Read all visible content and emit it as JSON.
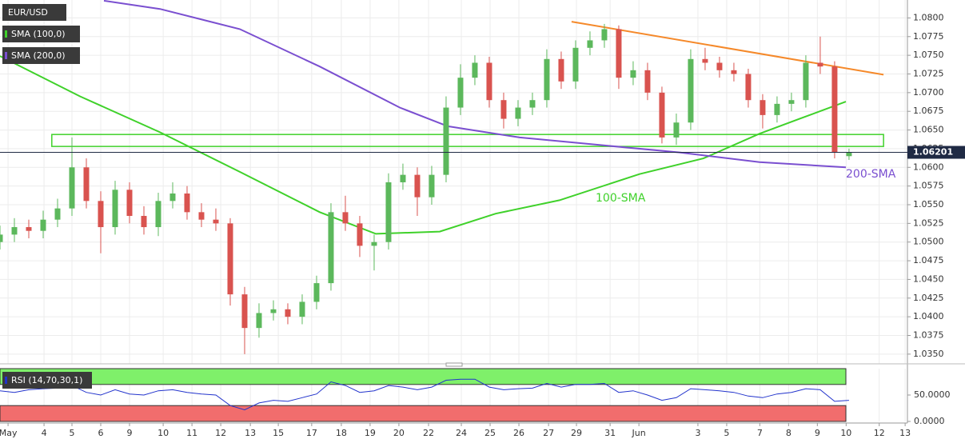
{
  "chart_data": {
    "type": "candlestick",
    "title": "EUR/USD",
    "xlim": [
      0,
      31.53
    ],
    "xticks": [
      {
        "value": 0.28,
        "label": "May"
      },
      {
        "value": 1.53,
        "label": "4"
      },
      {
        "value": 2.5,
        "label": "5"
      },
      {
        "value": 3.5,
        "label": "6"
      },
      {
        "value": 4.5,
        "label": "9"
      },
      {
        "value": 5.67,
        "label": "10"
      },
      {
        "value": 6.67,
        "label": "11"
      },
      {
        "value": 7.67,
        "label": "12"
      },
      {
        "value": 8.7,
        "label": "13"
      },
      {
        "value": 9.67,
        "label": "15"
      },
      {
        "value": 10.83,
        "label": "17"
      },
      {
        "value": 11.86,
        "label": "18"
      },
      {
        "value": 12.86,
        "label": "19"
      },
      {
        "value": 13.86,
        "label": "20"
      },
      {
        "value": 14.89,
        "label": "22"
      },
      {
        "value": 16.03,
        "label": "24"
      },
      {
        "value": 17.03,
        "label": "25"
      },
      {
        "value": 18.03,
        "label": "26"
      },
      {
        "value": 19.06,
        "label": "27"
      },
      {
        "value": 20.03,
        "label": "29"
      },
      {
        "value": 21.2,
        "label": "31"
      },
      {
        "value": 22.2,
        "label": "Jun"
      },
      {
        "value": 24.25,
        "label": "3"
      },
      {
        "value": 25.25,
        "label": "5"
      },
      {
        "value": 26.4,
        "label": "7"
      },
      {
        "value": 27.4,
        "label": "8"
      },
      {
        "value": 28.4,
        "label": "9"
      },
      {
        "value": 29.4,
        "label": "10"
      },
      {
        "value": 30.55,
        "label": "12"
      },
      {
        "value": 31.45,
        "label": "13"
      }
    ],
    "ylim": [
      1.0337,
      1.0824
    ],
    "yticks": [
      {
        "value": 1.035,
        "label": "1.0350"
      },
      {
        "value": 1.0375,
        "label": "1.0375"
      },
      {
        "value": 1.04,
        "label": "1.0400"
      },
      {
        "value": 1.0425,
        "label": "1.0425"
      },
      {
        "value": 1.045,
        "label": "1.0450"
      },
      {
        "value": 1.0475,
        "label": "1.0475"
      },
      {
        "value": 1.05,
        "label": "1.0500"
      },
      {
        "value": 1.0525,
        "label": "1.0525"
      },
      {
        "value": 1.055,
        "label": "1.0550"
      },
      {
        "value": 1.0575,
        "label": "1.0575"
      },
      {
        "value": 1.06,
        "label": "1.0600"
      },
      {
        "value": 1.0625,
        "label": "1.0625"
      },
      {
        "value": 1.065,
        "label": "1.0650"
      },
      {
        "value": 1.0675,
        "label": "1.0675"
      },
      {
        "value": 1.07,
        "label": "1.0700"
      },
      {
        "value": 1.0725,
        "label": "1.0725"
      },
      {
        "value": 1.075,
        "label": "1.0750"
      },
      {
        "value": 1.0775,
        "label": "1.0775"
      },
      {
        "value": 1.08,
        "label": "1.0800"
      }
    ],
    "grid": true,
    "up_color": "#5cb85c",
    "down_color": "#d9534f",
    "candles": {
      "x": [
        0,
        0.5,
        1,
        1.5,
        2,
        2.5,
        3,
        3.5,
        4,
        4.5,
        5,
        5.5,
        6,
        6.5,
        7,
        7.5,
        8,
        8.5,
        9,
        9.5,
        10,
        10.5,
        11,
        11.5,
        12,
        12.5,
        13,
        13.5,
        14,
        14.5,
        15,
        15.5,
        16,
        16.5,
        17,
        17.5,
        18,
        18.5,
        19,
        19.5,
        20,
        20.5,
        21,
        21.5,
        22,
        22.5,
        23,
        23.5,
        24,
        24.5,
        25,
        25.5,
        26,
        26.5,
        27,
        27.5,
        28,
        28.5,
        29,
        29.5
      ],
      "open": [
        1.05,
        1.051,
        1.052,
        1.0515,
        1.053,
        1.0545,
        1.06,
        1.0555,
        1.052,
        1.057,
        1.0535,
        1.052,
        1.0555,
        1.0565,
        1.054,
        1.053,
        1.0525,
        1.043,
        1.0385,
        1.0405,
        1.041,
        1.04,
        1.042,
        1.0445,
        1.054,
        1.0525,
        1.0495,
        1.05,
        1.058,
        1.059,
        1.056,
        1.059,
        1.068,
        1.072,
        1.074,
        1.069,
        1.0665,
        1.068,
        1.069,
        1.0745,
        1.0715,
        1.076,
        1.077,
        1.0785,
        1.072,
        1.073,
        1.07,
        1.064,
        1.066,
        1.0745,
        1.074,
        1.073,
        1.0725,
        1.069,
        1.067,
        1.0685,
        1.069,
        1.074,
        1.0735,
        1.0615
      ],
      "high": [
        1.0522,
        1.0532,
        1.053,
        1.0542,
        1.0558,
        1.064,
        1.0612,
        1.0568,
        1.0582,
        1.058,
        1.0548,
        1.0566,
        1.058,
        1.0575,
        1.0552,
        1.0545,
        1.0532,
        1.044,
        1.0418,
        1.0422,
        1.0418,
        1.043,
        1.0455,
        1.0552,
        1.0562,
        1.0535,
        1.051,
        1.0592,
        1.0605,
        1.06,
        1.0602,
        1.0695,
        1.0738,
        1.075,
        1.0748,
        1.07,
        1.069,
        1.07,
        1.0758,
        1.0755,
        1.077,
        1.0782,
        1.0792,
        1.079,
        1.0742,
        1.074,
        1.0708,
        1.0672,
        1.0758,
        1.076,
        1.0748,
        1.074,
        1.0732,
        1.0698,
        1.0695,
        1.07,
        1.075,
        1.0775,
        1.0742,
        1.0625
      ],
      "low": [
        1.049,
        1.05,
        1.0505,
        1.0505,
        1.052,
        1.0535,
        1.0545,
        1.0485,
        1.051,
        1.0525,
        1.051,
        1.0508,
        1.0545,
        1.053,
        1.052,
        1.0515,
        1.0415,
        1.035,
        1.0372,
        1.0395,
        1.039,
        1.039,
        1.041,
        1.0435,
        1.0515,
        1.048,
        1.0462,
        1.049,
        1.057,
        1.0535,
        1.055,
        1.058,
        1.067,
        1.071,
        1.068,
        1.0652,
        1.0655,
        1.067,
        1.068,
        1.0705,
        1.0705,
        1.075,
        1.076,
        1.0705,
        1.071,
        1.069,
        1.0632,
        1.063,
        1.065,
        1.073,
        1.072,
        1.0715,
        1.068,
        1.0652,
        1.066,
        1.0675,
        1.068,
        1.0725,
        1.0612,
        1.061
      ],
      "close": [
        1.051,
        1.052,
        1.0515,
        1.053,
        1.0545,
        1.06,
        1.0555,
        1.052,
        1.057,
        1.0535,
        1.052,
        1.0555,
        1.0565,
        1.054,
        1.053,
        1.0525,
        1.043,
        1.0385,
        1.0405,
        1.041,
        1.04,
        1.042,
        1.0445,
        1.054,
        1.0525,
        1.0495,
        1.05,
        1.058,
        1.059,
        1.056,
        1.059,
        1.068,
        1.072,
        1.074,
        1.069,
        1.0665,
        1.068,
        1.069,
        1.0745,
        1.0715,
        1.076,
        1.077,
        1.0785,
        1.072,
        1.073,
        1.07,
        1.064,
        1.066,
        1.0745,
        1.074,
        1.073,
        1.0725,
        1.069,
        1.067,
        1.0685,
        1.069,
        1.074,
        1.0735,
        1.062,
        1.062
      ]
    },
    "series": [
      {
        "name": "SMA (100,0)",
        "label": "100-SMA",
        "color": "#3fd12a",
        "x": [
          0,
          2.78,
          5.56,
          8.33,
          11.11,
          13.06,
          15.28,
          17.22,
          19.44,
          22.22,
          24.44,
          26.39,
          27.78,
          29.39
        ],
        "values": [
          1.0749,
          1.0695,
          1.0647,
          1.0594,
          1.054,
          1.0511,
          1.0514,
          1.0538,
          1.0556,
          1.0591,
          1.0612,
          1.0645,
          1.0665,
          1.0688
        ]
      },
      {
        "name": "SMA (200,0)",
        "label": "200-SMA",
        "color": "#7a4fd0",
        "x": [
          3.61,
          5.56,
          8.33,
          11.11,
          13.89,
          15.56,
          18.06,
          20.83,
          23.61,
          26.39,
          29.39
        ],
        "values": [
          1.0823,
          1.0812,
          1.0785,
          1.0735,
          1.068,
          1.0655,
          1.064,
          1.063,
          1.062,
          1.0607,
          1.06
        ]
      }
    ],
    "trendline": {
      "color": "#f5892a",
      "x": [
        19.86,
        30.7
      ],
      "values": [
        1.0795,
        1.0724
      ]
    },
    "zone": {
      "color": "#3fd12a",
      "x": [
        1.8,
        30.7
      ],
      "values": [
        1.0644,
        1.0628
      ]
    },
    "price_line": {
      "value": 1.06201,
      "color": "#1f2a44"
    },
    "rsi": {
      "name": "RSI (14,70,30,1)",
      "color": "#2233cc",
      "ylim": [
        0,
        100
      ],
      "overbought": 70,
      "oversold": 30,
      "yticks": [
        {
          "value": 0,
          "label": "0.0000"
        },
        {
          "value": 50,
          "label": "50.0000"
        }
      ],
      "values": [
        58,
        55,
        60,
        62,
        63,
        68,
        55,
        50,
        60,
        52,
        50,
        58,
        60,
        55,
        52,
        50,
        30,
        22,
        35,
        40,
        38,
        45,
        52,
        75,
        68,
        55,
        58,
        68,
        65,
        60,
        65,
        78,
        80,
        80,
        65,
        60,
        62,
        63,
        72,
        65,
        70,
        70,
        72,
        55,
        58,
        50,
        40,
        45,
        62,
        60,
        58,
        55,
        48,
        45,
        52,
        55,
        62,
        60,
        38,
        40
      ]
    }
  }
}
